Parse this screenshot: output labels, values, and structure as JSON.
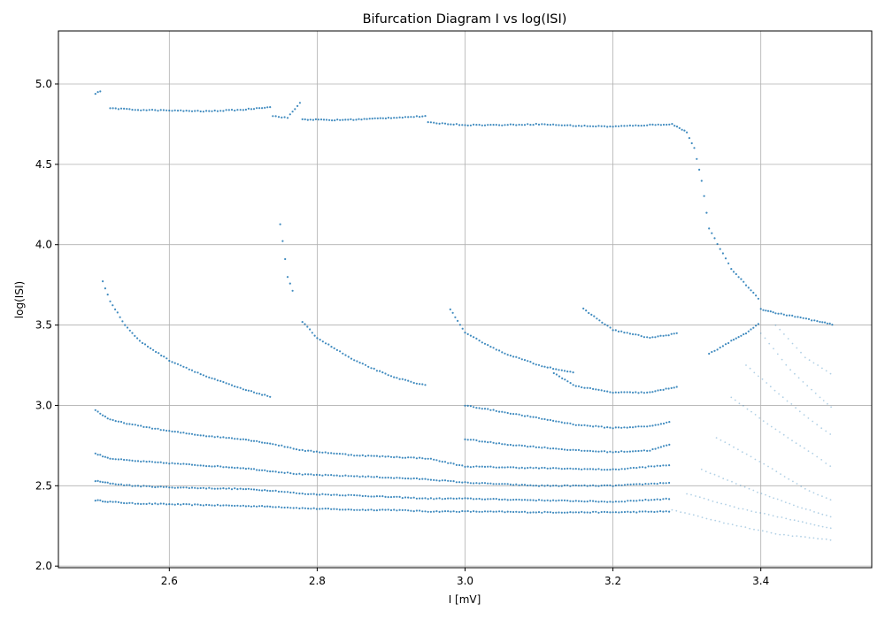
{
  "chart_data": {
    "type": "scatter",
    "title": "Bifurcation Diagram I vs log(ISI)",
    "xlabel": "I [mV]",
    "ylabel": "log(ISI)",
    "xlim": [
      2.45,
      3.55
    ],
    "ylim": [
      1.99,
      5.33
    ],
    "xticks": [
      2.6,
      2.8,
      3.0,
      3.2,
      3.4
    ],
    "xtick_labels": [
      "2.6",
      "2.8",
      "3.0",
      "3.2",
      "3.4"
    ],
    "yticks": [
      2.0,
      2.5,
      3.0,
      3.5,
      4.0,
      4.5,
      5.0
    ],
    "ytick_labels": [
      "2.0",
      "2.5",
      "3.0",
      "3.5",
      "4.0",
      "4.5",
      "5.0"
    ],
    "grid": true,
    "marker_color": "#1f77b4",
    "branches": [
      {
        "x": [
          2.5,
          2.52,
          2.55,
          2.6,
          2.65,
          2.7,
          2.74,
          2.78,
          2.85,
          2.9,
          2.95,
          3.0,
          3.1,
          3.2,
          3.28
        ],
        "y": [
          2.41,
          2.4,
          2.39,
          2.385,
          2.38,
          2.375,
          2.37,
          2.36,
          2.35,
          2.35,
          2.34,
          2.34,
          2.335,
          2.335,
          2.34
        ]
      },
      {
        "x": [
          2.5,
          2.52,
          2.55,
          2.6,
          2.65,
          2.7,
          2.74,
          2.78,
          2.85,
          2.9,
          2.95,
          3.0,
          3.1,
          3.2,
          3.28
        ],
        "y": [
          2.53,
          2.515,
          2.5,
          2.49,
          2.485,
          2.48,
          2.47,
          2.45,
          2.44,
          2.43,
          2.42,
          2.42,
          2.41,
          2.4,
          2.42
        ]
      },
      {
        "x": [
          2.5,
          2.52,
          2.55,
          2.6,
          2.65,
          2.7,
          2.74,
          2.78,
          2.85,
          2.9,
          2.95,
          3.0,
          3.1,
          3.2,
          3.28
        ],
        "y": [
          2.7,
          2.67,
          2.655,
          2.64,
          2.625,
          2.61,
          2.59,
          2.57,
          2.56,
          2.55,
          2.54,
          2.52,
          2.5,
          2.5,
          2.52
        ]
      },
      {
        "x": [
          2.5,
          2.52,
          2.55,
          2.6,
          2.65,
          2.7,
          2.74,
          2.78,
          2.85,
          2.9,
          2.95,
          3.0,
          3.1,
          3.2,
          3.28
        ],
        "y": [
          2.97,
          2.91,
          2.88,
          2.84,
          2.81,
          2.79,
          2.76,
          2.72,
          2.69,
          2.68,
          2.67,
          2.62,
          2.61,
          2.6,
          2.63
        ]
      },
      {
        "x": [
          3.0,
          3.05,
          3.1,
          3.15,
          3.2,
          3.25,
          3.28
        ],
        "y": [
          2.79,
          2.76,
          2.74,
          2.72,
          2.71,
          2.72,
          2.76
        ]
      },
      {
        "x": [
          3.0,
          3.05,
          3.1,
          3.15,
          3.2,
          3.25,
          3.28
        ],
        "y": [
          3.0,
          2.96,
          2.92,
          2.88,
          2.86,
          2.87,
          2.9
        ]
      },
      {
        "x": [
          2.51,
          2.52,
          2.54,
          2.56,
          2.6,
          2.65,
          2.7,
          2.74
        ],
        "y": [
          3.77,
          3.65,
          3.5,
          3.4,
          3.28,
          3.18,
          3.1,
          3.05
        ]
      },
      {
        "x": [
          2.78,
          2.8,
          2.85,
          2.9,
          2.95
        ],
        "y": [
          3.52,
          3.42,
          3.28,
          3.18,
          3.12
        ]
      },
      {
        "x": [
          2.98,
          3.0,
          3.05,
          3.1,
          3.15
        ],
        "y": [
          3.6,
          3.45,
          3.33,
          3.25,
          3.2
        ]
      },
      {
        "x": [
          3.16,
          3.2,
          3.25,
          3.29
        ],
        "y": [
          3.6,
          3.47,
          3.42,
          3.45
        ]
      },
      {
        "x": [
          3.12,
          3.15,
          3.2,
          3.25,
          3.29
        ],
        "y": [
          3.2,
          3.12,
          3.08,
          3.08,
          3.12
        ]
      },
      {
        "x": [
          2.5,
          2.51
        ],
        "y": [
          4.94,
          4.96
        ]
      },
      {
        "x": [
          2.52,
          2.55,
          2.6,
          2.65,
          2.7,
          2.74
        ],
        "y": [
          4.85,
          4.84,
          4.835,
          4.83,
          4.84,
          4.86
        ]
      },
      {
        "x": [
          2.74,
          2.76,
          2.78
        ],
        "y": [
          4.8,
          4.79,
          4.9
        ]
      },
      {
        "x": [
          2.78,
          2.82,
          2.86,
          2.9,
          2.95
        ],
        "y": [
          4.78,
          4.775,
          4.78,
          4.79,
          4.8
        ]
      },
      {
        "x": [
          2.95,
          3.0,
          3.05,
          3.1,
          3.15,
          3.2,
          3.25,
          3.28
        ],
        "y": [
          4.76,
          4.745,
          4.745,
          4.75,
          4.74,
          4.735,
          4.745,
          4.75
        ]
      },
      {
        "x": [
          3.28,
          3.3,
          3.31,
          3.32,
          3.33,
          3.36,
          3.38,
          3.4
        ],
        "y": [
          4.75,
          4.7,
          4.6,
          4.4,
          4.1,
          3.85,
          3.75,
          3.65
        ]
      },
      {
        "x": [
          3.4,
          3.42,
          3.45,
          3.48,
          3.5
        ],
        "y": [
          3.6,
          3.575,
          3.55,
          3.52,
          3.5
        ]
      },
      {
        "x": [
          3.33,
          3.36,
          3.38,
          3.4
        ],
        "y": [
          3.32,
          3.4,
          3.45,
          3.52
        ]
      },
      {
        "x": [
          2.75,
          2.76,
          2.77
        ],
        "y": [
          4.13,
          3.8,
          3.67
        ]
      }
    ],
    "fans": [
      {
        "x": [
          3.28,
          3.35,
          3.42,
          3.5
        ],
        "y": [
          2.35,
          2.27,
          2.2,
          2.16
        ]
      },
      {
        "x": [
          3.3,
          3.37,
          3.44,
          3.5
        ],
        "y": [
          2.45,
          2.36,
          2.29,
          2.23
        ]
      },
      {
        "x": [
          3.32,
          3.39,
          3.45,
          3.5
        ],
        "y": [
          2.6,
          2.47,
          2.37,
          2.3
        ]
      },
      {
        "x": [
          3.34,
          3.41,
          3.46,
          3.5
        ],
        "y": [
          2.8,
          2.62,
          2.48,
          2.4
        ]
      },
      {
        "x": [
          3.36,
          3.42,
          3.47,
          3.5
        ],
        "y": [
          3.05,
          2.85,
          2.7,
          2.6
        ]
      },
      {
        "x": [
          3.38,
          3.43,
          3.47,
          3.5
        ],
        "y": [
          3.25,
          3.05,
          2.9,
          2.8
        ]
      },
      {
        "x": [
          3.4,
          3.44,
          3.48,
          3.5
        ],
        "y": [
          3.45,
          3.22,
          3.05,
          2.97
        ]
      },
      {
        "x": [
          3.42,
          3.46,
          3.5
        ],
        "y": [
          3.5,
          3.3,
          3.18
        ]
      }
    ]
  }
}
